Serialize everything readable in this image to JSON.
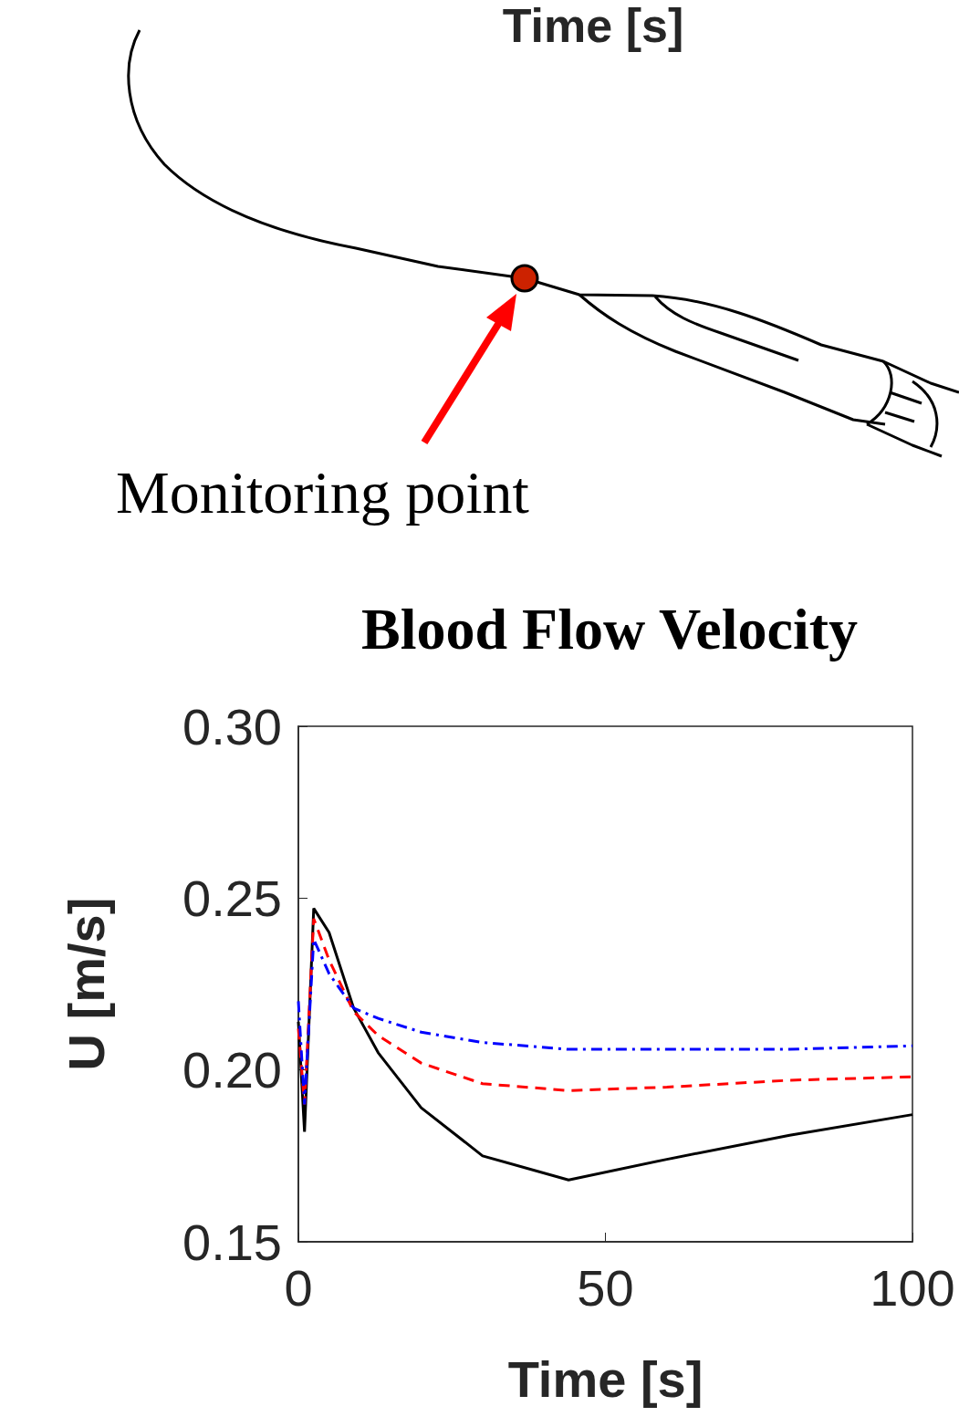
{
  "header_text": "Time [s]",
  "diagram": {
    "label": "Monitoring point"
  },
  "chart_data": {
    "type": "line",
    "title": "Blood Flow Velocity",
    "x_label": "Time [s]",
    "y_label": "U [m/s]",
    "xlim": [
      0,
      100
    ],
    "xticks": [
      0,
      50,
      100
    ],
    "ylim": [
      0.15,
      0.3
    ],
    "yticks": [
      0.15,
      {
        "value": 0.2,
        "label": "0.20"
      },
      0.25,
      {
        "value": 0.3,
        "label": "0.30"
      }
    ],
    "grid": false,
    "x": [
      0,
      1,
      2.5,
      5,
      9,
      13,
      20,
      30,
      44,
      60,
      80,
      100
    ],
    "series": [
      {
        "color": "#000000",
        "line_style": "solid",
        "values": [
          0.214,
          0.182,
          0.247,
          0.24,
          0.218,
          0.205,
          0.189,
          0.175,
          0.168,
          0.174,
          0.181,
          0.187
        ]
      },
      {
        "color": "#ff0000",
        "line_style": "dashed",
        "values": [
          0.212,
          0.19,
          0.244,
          0.232,
          0.217,
          0.21,
          0.202,
          0.196,
          0.194,
          0.195,
          0.197,
          0.198
        ]
      },
      {
        "color": "#0000ff",
        "line_style": "dashdot",
        "values": [
          0.22,
          0.19,
          0.238,
          0.228,
          0.218,
          0.215,
          0.211,
          0.208,
          0.206,
          0.206,
          0.206,
          0.207
        ]
      }
    ]
  }
}
